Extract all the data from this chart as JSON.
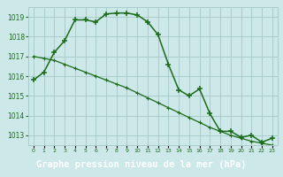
{
  "title": "Graphe pression niveau de la mer (hPa)",
  "x": [
    0,
    1,
    2,
    3,
    4,
    5,
    6,
    7,
    8,
    9,
    10,
    11,
    12,
    13,
    14,
    15,
    16,
    17,
    18,
    19,
    20,
    21,
    22,
    23
  ],
  "line1": [
    1015.8,
    1016.2,
    1017.2,
    1017.8,
    1018.85,
    1018.85,
    1018.75,
    1019.15,
    1019.2,
    1019.2,
    1019.1,
    1018.75,
    1018.1,
    1016.6,
    1015.3,
    1015.0,
    1015.35,
    1014.1,
    1013.2,
    1013.2,
    1012.9,
    1013.0,
    1012.65,
    1012.85
  ],
  "line2": [
    1017.0,
    1016.9,
    1016.8,
    1016.6,
    1016.4,
    1016.2,
    1016.0,
    1015.8,
    1015.6,
    1015.4,
    1015.15,
    1014.9,
    1014.65,
    1014.4,
    1014.15,
    1013.9,
    1013.65,
    1013.4,
    1013.2,
    1013.0,
    1012.85,
    1012.7,
    1012.6,
    1012.5
  ],
  "ylim": [
    1012.5,
    1019.5
  ],
  "yticks": [
    1013,
    1014,
    1015,
    1016,
    1017,
    1018,
    1019
  ],
  "xlim": [
    -0.5,
    23.5
  ],
  "background_color": "#cce8e8",
  "grid_color": "#aacccc",
  "line_color": "#1a6b1a",
  "title_bg": "#2d8b2d",
  "title_color": "#ffffff",
  "title_fontsize": 7.5
}
